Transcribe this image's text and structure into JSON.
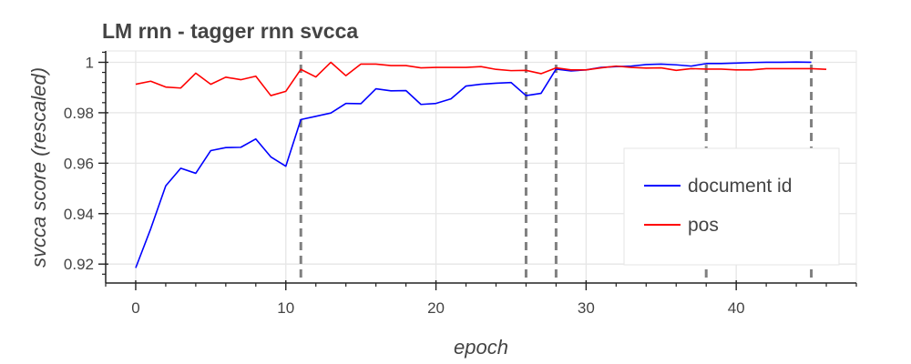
{
  "chart_data": {
    "type": "line",
    "title": "LM rnn - tagger rnn svcca",
    "xlabel": "epoch",
    "ylabel": "svcca score (rescaled)",
    "xlim": [
      -2,
      48
    ],
    "ylim": [
      0.9125,
      1.0045
    ],
    "xticks": [
      0,
      10,
      20,
      30,
      40
    ],
    "yticks": [
      0.92,
      0.94,
      0.96,
      0.98,
      1
    ],
    "ytick_labels": [
      "0.92",
      "0.94",
      "0.96",
      "0.98",
      "1"
    ],
    "grid": true,
    "legend_position": "bottom-right",
    "vertical_lines": [
      11,
      26,
      28,
      38,
      45
    ],
    "series": [
      {
        "name": "document id",
        "color": "#0000ff",
        "x": [
          0,
          1,
          2,
          3,
          4,
          5,
          6,
          7,
          8,
          9,
          10,
          11,
          12,
          13,
          14,
          15,
          16,
          17,
          18,
          19,
          20,
          21,
          22,
          23,
          24,
          25,
          26,
          27,
          28,
          29,
          30,
          31,
          32,
          33,
          34,
          35,
          36,
          37,
          38,
          39,
          40,
          41,
          42,
          43,
          44,
          45
        ],
        "y": [
          0.9185,
          0.934,
          0.951,
          0.958,
          0.956,
          0.965,
          0.9662,
          0.9663,
          0.9696,
          0.9625,
          0.9588,
          0.9773,
          0.9786,
          0.9799,
          0.9837,
          0.9836,
          0.9895,
          0.9887,
          0.9888,
          0.9833,
          0.9837,
          0.9855,
          0.9906,
          0.9913,
          0.9917,
          0.992,
          0.9868,
          0.9877,
          0.9973,
          0.9966,
          0.997,
          0.998,
          0.9983,
          0.9985,
          0.9991,
          0.9993,
          0.999,
          0.9985,
          0.9995,
          0.9995,
          0.9997,
          0.9999,
          1.0,
          1.0,
          1.0001,
          1.0
        ]
      },
      {
        "name": "pos",
        "color": "#ff0000",
        "x": [
          0,
          1,
          2,
          3,
          4,
          5,
          6,
          7,
          8,
          9,
          10,
          11,
          12,
          13,
          14,
          15,
          16,
          17,
          18,
          19,
          20,
          21,
          22,
          23,
          24,
          25,
          26,
          27,
          28,
          29,
          30,
          31,
          32,
          33,
          34,
          35,
          36,
          37,
          38,
          39,
          40,
          41,
          42,
          43,
          44,
          45,
          46
        ],
        "y": [
          0.9913,
          0.9925,
          0.9902,
          0.9898,
          0.9957,
          0.9913,
          0.9941,
          0.9931,
          0.9945,
          0.9868,
          0.9885,
          0.9972,
          0.9942,
          1.0,
          0.9947,
          0.9993,
          0.9993,
          0.9987,
          0.9987,
          0.9978,
          0.998,
          0.998,
          0.998,
          0.9983,
          0.9972,
          0.9967,
          0.9968,
          0.9955,
          0.9978,
          0.997,
          0.997,
          0.9978,
          0.9985,
          0.998,
          0.9977,
          0.9978,
          0.9968,
          0.9975,
          0.9973,
          0.9973,
          0.997,
          0.997,
          0.9975,
          0.9975,
          0.9975,
          0.9975,
          0.9972
        ]
      }
    ]
  }
}
